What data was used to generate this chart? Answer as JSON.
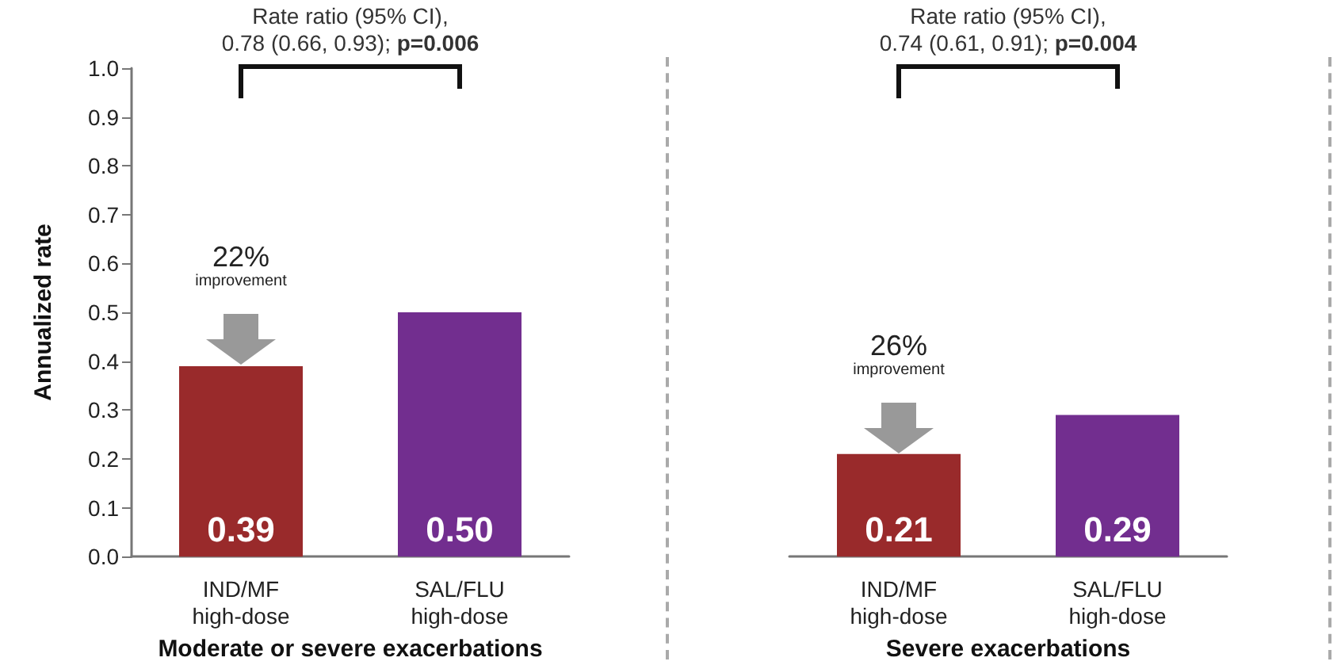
{
  "chart_data": [
    {
      "type": "bar",
      "xlabel": "Moderate or severe exacerbations",
      "ylabel": "Annualized rate",
      "categories": [
        "IND/MF\nhigh-dose",
        "SAL/FLU\nhigh-dose"
      ],
      "values": [
        0.39,
        0.5
      ],
      "colors": [
        "#992a2b",
        "#722e8f"
      ],
      "value_labels": [
        "0.39",
        "0.50"
      ],
      "ylim": [
        0,
        1
      ],
      "yticks": [
        {
          "value": 0,
          "label": "0.0"
        },
        {
          "value": 0.1,
          "label": "0.1"
        },
        {
          "value": 0.2,
          "label": "0.2"
        },
        {
          "value": 0.3,
          "label": "0.3"
        },
        {
          "value": 0.4,
          "label": "0.4"
        },
        {
          "value": 0.5,
          "label": "0.5"
        },
        {
          "value": 0.6,
          "label": "0.6"
        },
        {
          "value": 0.7,
          "label": "0.7"
        },
        {
          "value": 0.8,
          "label": "0.8"
        },
        {
          "value": 0.9,
          "label": "0.9"
        },
        {
          "value": 1,
          "label": "1.0"
        }
      ],
      "annotations": [
        "Rate ratio (95% CI),\n0.78 (0.66, 0.93); p=0.006",
        {
          "text": "22%\nimprovement",
          "x": "IND/MF\nhigh-dose",
          "y": 0.39
        }
      ]
    },
    {
      "type": "bar",
      "xlabel": "Severe exacerbations",
      "categories": [
        "IND/MF\nhigh-dose",
        "SAL/FLU\nhigh-dose"
      ],
      "values": [
        0.21,
        0.29
      ],
      "colors": [
        "#992a2b",
        "#722e8f"
      ],
      "value_labels": [
        "0.21",
        "0.29"
      ],
      "ylim": [
        0,
        1
      ],
      "tick_labels": "x",
      "annotations": [
        "Rate ratio (95% CI),\n0.74 (0.61, 0.91); p=0.004",
        {
          "text": "26%\nimprovement",
          "x": "IND/MF\nhigh-dose",
          "y": 0.21
        }
      ]
    }
  ]
}
